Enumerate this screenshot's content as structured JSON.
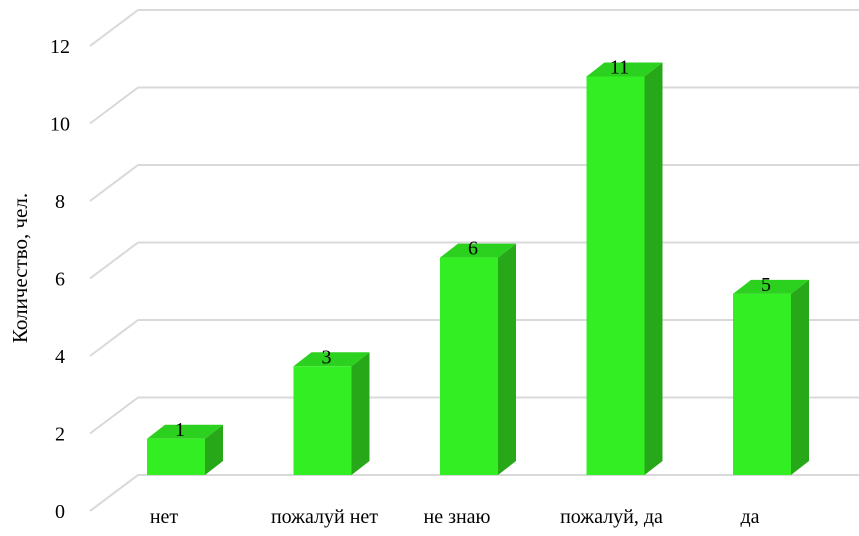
{
  "chart_data": {
    "type": "bar",
    "title": "",
    "xlabel": "",
    "ylabel": "Количество, чел.",
    "categories": [
      "нет",
      "пожалуй нет",
      "не знаю",
      "пожалуй, да",
      "да"
    ],
    "values": [
      1,
      3,
      6,
      11,
      5
    ],
    "ylim": [
      0,
      12
    ],
    "yticks": [
      0,
      2,
      4,
      6,
      8,
      10,
      12
    ],
    "grid": true,
    "legend": "none",
    "bar_style": "3d",
    "colors": {
      "bar_front": "#33ee22",
      "bar_side": "#26a818",
      "bar_top": "#2cd01e",
      "grid": "#d9d9d9"
    }
  }
}
